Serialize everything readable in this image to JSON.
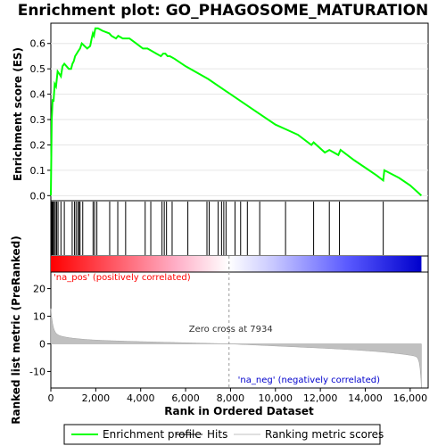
{
  "chart_data": {
    "type": "line",
    "title": "Enrichment plot: GO_PHAGOSOME_MATURATION",
    "es_panel": {
      "ylabel": "Enrichment score (ES)",
      "ylim": [
        -0.02,
        0.68
      ],
      "yticks": [
        "0.0",
        "0.1",
        "0.2",
        "0.3",
        "0.4",
        "0.5",
        "0.6"
      ],
      "ytick_values": [
        0.0,
        0.1,
        0.2,
        0.3,
        0.4,
        0.5,
        0.6
      ],
      "series": [
        {
          "name": "Enrichment profile",
          "color": "#00ff00",
          "x": [
            0,
            40,
            80,
            120,
            170,
            230,
            300,
            380,
            450,
            520,
            600,
            700,
            800,
            900,
            960,
            1020,
            1080,
            1150,
            1220,
            1300,
            1380,
            1500,
            1620,
            1750,
            1820,
            1870,
            1920,
            1980,
            2100,
            2300,
            2600,
            2700,
            2900,
            3000,
            3200,
            3350,
            3500,
            3800,
            4100,
            4300,
            4500,
            4700,
            4900,
            5000,
            5100,
            5200,
            5300,
            5500,
            6000,
            7000,
            8000,
            9000,
            10000,
            10500,
            11000,
            11600,
            11700,
            12200,
            12400,
            12800,
            12900,
            13500,
            14000,
            14500,
            14800,
            14850,
            15500,
            16000,
            16500
          ],
          "y": [
            0.0,
            0.3,
            0.38,
            0.37,
            0.44,
            0.43,
            0.49,
            0.48,
            0.47,
            0.51,
            0.52,
            0.51,
            0.5,
            0.5,
            0.52,
            0.53,
            0.55,
            0.56,
            0.57,
            0.58,
            0.6,
            0.59,
            0.58,
            0.59,
            0.62,
            0.64,
            0.63,
            0.66,
            0.66,
            0.65,
            0.64,
            0.63,
            0.62,
            0.63,
            0.62,
            0.62,
            0.62,
            0.6,
            0.58,
            0.58,
            0.57,
            0.56,
            0.55,
            0.56,
            0.56,
            0.55,
            0.55,
            0.54,
            0.51,
            0.46,
            0.4,
            0.34,
            0.28,
            0.26,
            0.24,
            0.2,
            0.21,
            0.17,
            0.18,
            0.16,
            0.18,
            0.14,
            0.11,
            0.08,
            0.06,
            0.1,
            0.07,
            0.04,
            0.0
          ]
        }
      ]
    },
    "hits": [
      30,
      60,
      100,
      150,
      200,
      260,
      320,
      450,
      600,
      950,
      1050,
      1120,
      1200,
      1260,
      1300,
      1420,
      1880,
      1950,
      2050,
      2620,
      2980,
      3330,
      4200,
      4450,
      4950,
      5050,
      5150,
      5400,
      6100,
      6950,
      7050,
      7450,
      7600,
      7700,
      7800,
      8200,
      8450,
      8750,
      9300,
      10450,
      11700,
      12400,
      12850,
      14800
    ],
    "metric_panel": {
      "ylabel": "Ranked list metric (PreRanked)",
      "xlabel": "Rank in Ordered Dataset",
      "ylim": [
        -16,
        26
      ],
      "yticks": [
        "20",
        "10",
        "0",
        "-10"
      ],
      "ytick_values": [
        20,
        10,
        0,
        -10
      ],
      "xlim": [
        0,
        16800
      ],
      "xticks": [
        "0",
        "2,000",
        "4,000",
        "6,000",
        "8,000",
        "10,000",
        "12,000",
        "14,000",
        "16,000"
      ],
      "xtick_values": [
        0,
        2000,
        4000,
        6000,
        8000,
        10000,
        12000,
        14000,
        16000
      ],
      "zero_cross": 7934,
      "zero_cross_label": "Zero cross at 7934",
      "pos_label": "'na_pos' (positively correlated)",
      "neg_label": "'na_neg' (negatively correlated)",
      "n_genes": 16500,
      "color_pos": "#ff0000",
      "color_neg": "#0000ff"
    },
    "legend": [
      {
        "label": "Enrichment profile",
        "color": "#00ff00"
      },
      {
        "label": "Hits",
        "color": "#000000"
      },
      {
        "label": "Ranking metric scores",
        "color": "#c0c0c0"
      }
    ]
  }
}
